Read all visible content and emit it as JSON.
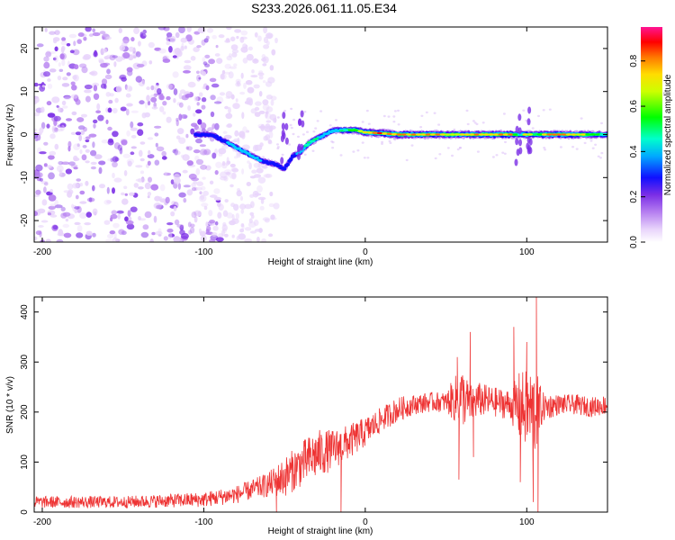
{
  "title": "S233.2026.061.11.05.E34",
  "chart_data": [
    {
      "type": "heatmap",
      "name": "spectrogram",
      "xlabel": "Height of straight line (km)",
      "ylabel": "Frequency (Hz)",
      "xlim": [
        -205,
        150
      ],
      "ylim": [
        -25,
        25
      ],
      "xticks": [
        -200,
        -100,
        0,
        100
      ],
      "yticks": [
        -20,
        -10,
        0,
        10,
        20
      ],
      "colorbar": {
        "label": "Normalized spectral amplitude",
        "range": [
          0,
          0.95
        ],
        "ticks": [
          0.0,
          0.2,
          0.4,
          0.6,
          0.8
        ],
        "colors": [
          "#ffffff",
          "#d8b8f8",
          "#8a2be2",
          "#0000ff",
          "#00ccff",
          "#00ff00",
          "#ffff00",
          "#ff9900",
          "#ff0000",
          "#ff1493"
        ]
      },
      "ridge": {
        "x": [
          -105,
          -95,
          -85,
          -75,
          -65,
          -55,
          -50,
          -45,
          -40,
          -35,
          -30,
          -25,
          -20,
          -15,
          -10,
          -5,
          0,
          10,
          20,
          40,
          60,
          80,
          90,
          95,
          100,
          105,
          110,
          130,
          150
        ],
        "freq": [
          0,
          0,
          -2,
          -4,
          -6,
          -7,
          -8,
          -5,
          -4,
          -2,
          -1,
          0,
          1,
          1,
          1,
          1,
          0.5,
          0.3,
          0,
          0,
          0,
          0,
          0,
          0,
          0,
          0,
          0,
          0,
          0
        ],
        "amp": [
          0.3,
          0.3,
          0.35,
          0.4,
          0.35,
          0.3,
          0.25,
          0.3,
          0.4,
          0.6,
          0.5,
          0.4,
          0.4,
          0.5,
          0.6,
          0.7,
          0.85,
          0.9,
          0.9,
          0.85,
          0.8,
          0.9,
          0.85,
          0.5,
          0.9,
          0.5,
          0.9,
          0.85,
          0.5
        ]
      },
      "noise_region_x": [
        -205,
        -55
      ]
    },
    {
      "type": "line",
      "name": "snr",
      "xlabel": "Height of straight line (km)",
      "ylabel": "SNR (10 * v/v)",
      "xlim": [
        -205,
        150
      ],
      "ylim": [
        0,
        430
      ],
      "xticks": [
        -200,
        -100,
        0,
        100
      ],
      "yticks": [
        0,
        100,
        200,
        300,
        400
      ],
      "color": "#ee3333",
      "series": [
        {
          "name": "SNR",
          "x": [
            -205,
            -150,
            -100,
            -80,
            -70,
            -60,
            -50,
            -40,
            -30,
            -20,
            -10,
            0,
            10,
            20,
            30,
            40,
            50,
            55,
            60,
            65,
            70,
            80,
            90,
            95,
            100,
            105,
            110,
            120,
            130,
            140,
            150
          ],
          "mean": [
            20,
            20,
            25,
            35,
            45,
            55,
            70,
            95,
            115,
            125,
            140,
            160,
            185,
            205,
            215,
            220,
            220,
            225,
            230,
            215,
            225,
            220,
            215,
            210,
            205,
            200,
            210,
            215,
            215,
            210,
            215
          ],
          "noise": [
            12,
            12,
            15,
            18,
            20,
            25,
            40,
            45,
            50,
            40,
            35,
            30,
            25,
            25,
            20,
            20,
            20,
            45,
            60,
            40,
            35,
            30,
            30,
            70,
            80,
            90,
            30,
            20,
            20,
            20,
            20
          ]
        }
      ],
      "spikes": [
        {
          "x": 57,
          "y": 310
        },
        {
          "x": 58,
          "y": 65
        },
        {
          "x": 65,
          "y": 360
        },
        {
          "x": 67,
          "y": 110
        },
        {
          "x": 92,
          "y": 370
        },
        {
          "x": 96,
          "y": 60
        },
        {
          "x": 100,
          "y": 340
        },
        {
          "x": 104,
          "y": 20
        },
        {
          "x": 106,
          "y": 430
        },
        {
          "x": 107,
          "y": 0
        },
        {
          "x": -15,
          "y": 0
        },
        {
          "x": -55,
          "y": 0
        }
      ]
    }
  ]
}
